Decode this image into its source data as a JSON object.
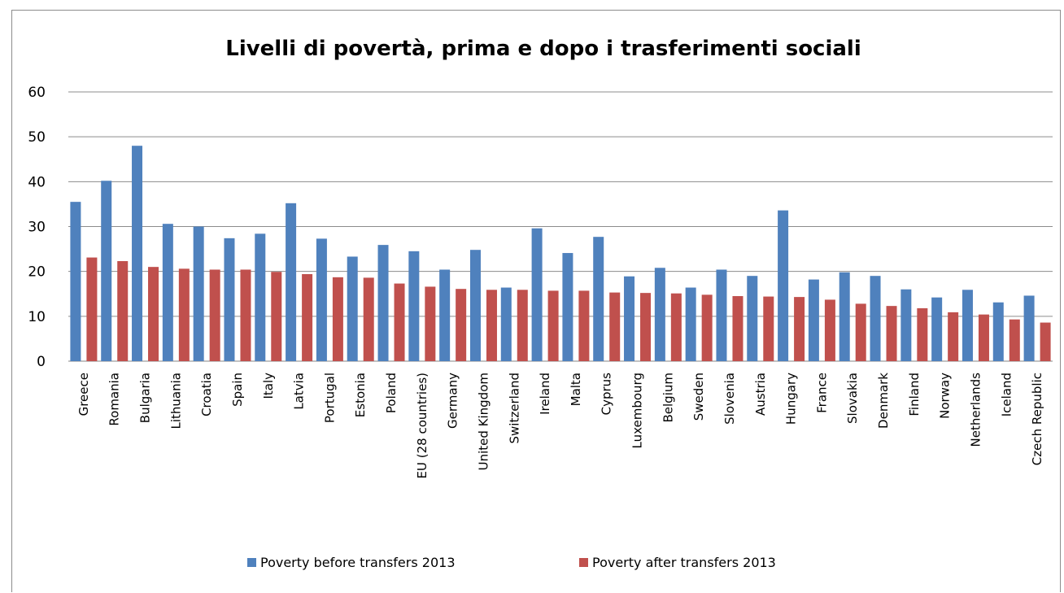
{
  "chart_data": {
    "type": "bar",
    "title": "Livelli di povertà, prima e dopo i trasferimenti sociali",
    "xlabel": "",
    "ylabel": "",
    "ylim": [
      0,
      60
    ],
    "yticks": [
      0,
      10,
      20,
      30,
      40,
      50,
      60
    ],
    "grid": true,
    "legend_position": "bottom",
    "categories": [
      "Greece",
      "Romania",
      "Bulgaria",
      "Lithuania",
      "Croatia",
      "Spain",
      "Italy",
      "Latvia",
      "Portugal",
      "Estonia",
      "Poland",
      "EU (28 countries)",
      "Germany",
      "United Kingdom",
      "Switzerland",
      "Ireland",
      "Malta",
      "Cyprus",
      "Luxembourg",
      "Belgium",
      "Sweden",
      "Slovenia",
      "Austria",
      "Hungary",
      "France",
      "Slovakia",
      "Denmark",
      "Finland",
      "Norway",
      "Netherlands",
      "Iceland",
      "Czech Republic"
    ],
    "series": [
      {
        "name": "Poverty before transfers 2013",
        "color": "#4f81bd",
        "values": [
          35.5,
          40.2,
          48.0,
          30.6,
          30.0,
          27.4,
          28.4,
          35.2,
          27.3,
          23.3,
          25.9,
          24.5,
          20.4,
          24.8,
          16.4,
          29.6,
          24.1,
          27.7,
          18.9,
          20.8,
          16.4,
          20.4,
          19.0,
          33.6,
          18.2,
          19.8,
          19.0,
          16.0,
          14.2,
          15.9,
          13.1,
          14.6
        ]
      },
      {
        "name": "Poverty after transfers 2013",
        "color": "#c0504d",
        "values": [
          23.1,
          22.3,
          21.0,
          20.6,
          20.4,
          20.4,
          19.9,
          19.4,
          18.7,
          18.6,
          17.3,
          16.6,
          16.1,
          15.9,
          15.9,
          15.7,
          15.7,
          15.3,
          15.2,
          15.1,
          14.8,
          14.5,
          14.4,
          14.3,
          13.7,
          12.8,
          12.3,
          11.8,
          10.9,
          10.4,
          9.3,
          8.6
        ]
      }
    ]
  }
}
